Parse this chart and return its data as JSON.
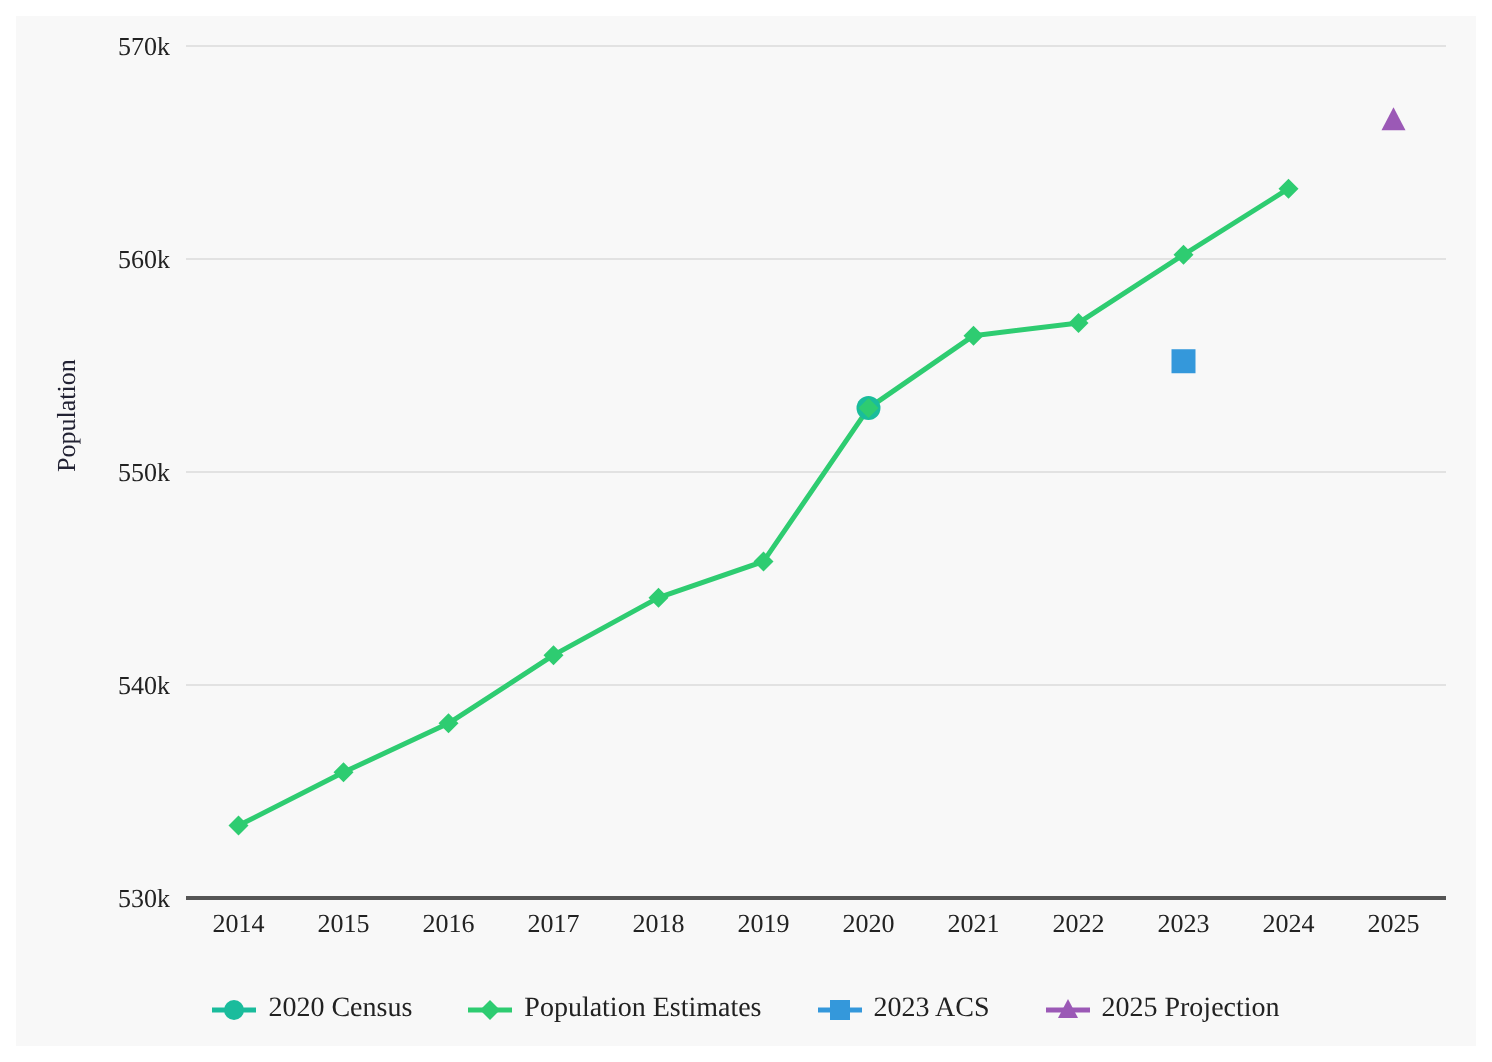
{
  "chart_data": {
    "type": "line",
    "ylabel": "Population",
    "categories": [
      "2014",
      "2015",
      "2016",
      "2017",
      "2018",
      "2019",
      "2020",
      "2021",
      "2022",
      "2023",
      "2024",
      "2025"
    ],
    "series": [
      {
        "name": "2020 Census",
        "type": "scatter",
        "marker": "circle",
        "color": "#1abc9c",
        "values": [
          null,
          null,
          null,
          null,
          null,
          null,
          553.0,
          null,
          null,
          null,
          null,
          null
        ]
      },
      {
        "name": "Population Estimates",
        "marker": "diamond",
        "line_style": "solid",
        "color": "#2ecc71",
        "values": [
          533.4,
          535.9,
          538.2,
          541.4,
          544.1,
          545.8,
          553.0,
          556.4,
          557.0,
          560.2,
          563.3,
          null
        ]
      },
      {
        "name": "2023 ACS",
        "type": "scatter",
        "marker": "square",
        "color": "#3498db",
        "values": [
          null,
          null,
          null,
          null,
          null,
          null,
          null,
          null,
          null,
          555.2,
          null,
          null
        ]
      },
      {
        "name": "2025 Projection",
        "type": "scatter",
        "marker": "triangle",
        "color": "#9b59b6",
        "values": [
          null,
          null,
          null,
          null,
          null,
          null,
          null,
          null,
          null,
          null,
          null,
          566.5
        ]
      }
    ],
    "ylim": [
      530,
      570
    ],
    "yticks": [
      {
        "value": 530,
        "label": "530k"
      },
      {
        "value": 540,
        "label": "540k"
      },
      {
        "value": 550,
        "label": "550k"
      },
      {
        "value": 560,
        "label": "560k"
      },
      {
        "value": 570,
        "label": "570k"
      }
    ],
    "grid": "y",
    "legend": "bottom"
  }
}
